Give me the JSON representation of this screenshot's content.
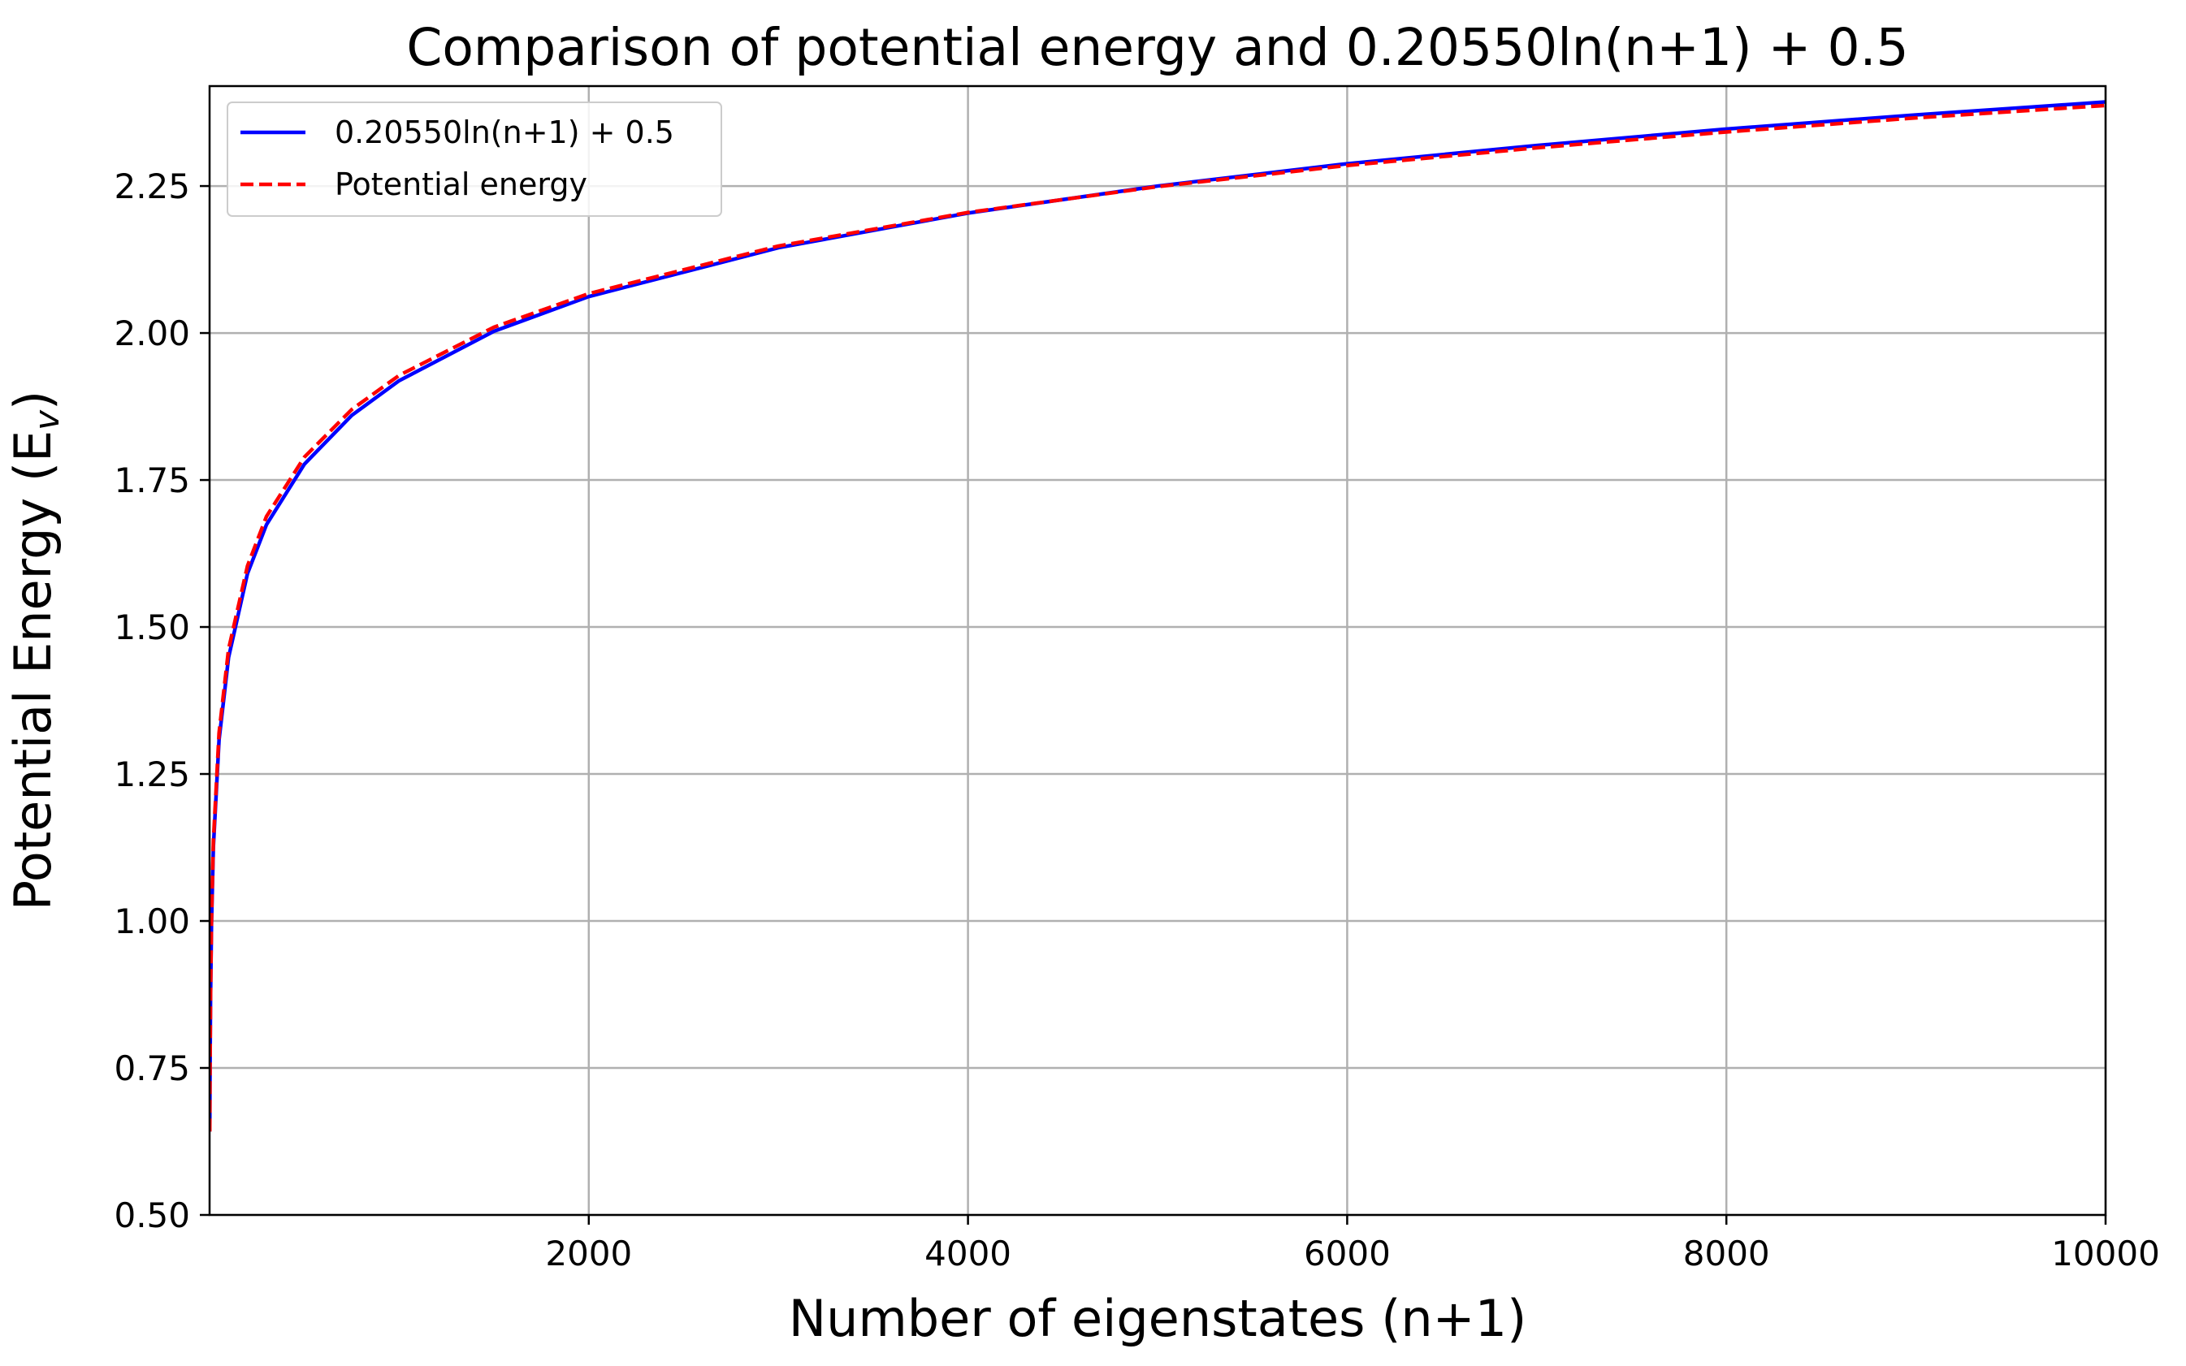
{
  "chart_data": {
    "type": "line",
    "title": "Comparison of potential energy and 0.20550ln(n+1) + 0.5",
    "xlabel": "Number of eigenstates (n+1)",
    "ylabel_main": "Potential Energy (E",
    "ylabel_sub": "v",
    "ylabel_end": ")",
    "xlim": [
      0,
      10000
    ],
    "ylim": [
      0.5,
      2.42
    ],
    "xticks": [
      2000,
      4000,
      6000,
      8000,
      10000
    ],
    "xtick_labels": [
      "2000",
      "4000",
      "6000",
      "8000",
      "10000"
    ],
    "yticks": [
      0.5,
      0.75,
      1.0,
      1.25,
      1.5,
      1.75,
      2.0,
      2.25
    ],
    "ytick_labels": [
      "0.50",
      "0.75",
      "1.00",
      "1.25",
      "1.50",
      "1.75",
      "2.00",
      "2.25"
    ],
    "grid": true,
    "legend_position": "top-left",
    "series": [
      {
        "name": "0.20550ln(n+1) + 0.5",
        "color": "#0000ff",
        "style": "solid",
        "x": [
          1,
          2,
          5,
          10,
          20,
          50,
          100,
          200,
          300,
          500,
          750,
          1000,
          1500,
          2000,
          3000,
          4000,
          5000,
          6000,
          7000,
          8000,
          9000,
          10000
        ],
        "y": [
          0.642,
          0.726,
          0.868,
          0.993,
          1.126,
          1.308,
          1.448,
          1.591,
          1.674,
          1.777,
          1.86,
          1.919,
          2.003,
          2.062,
          2.145,
          2.204,
          2.25,
          2.288,
          2.319,
          2.347,
          2.371,
          2.393
        ]
      },
      {
        "name": "Potential energy",
        "color": "#ff0000",
        "style": "dashed",
        "x": [
          1,
          2,
          5,
          10,
          20,
          50,
          100,
          200,
          300,
          500,
          750,
          1000,
          1500,
          2000,
          3000,
          4000,
          5000,
          6000,
          7000,
          8000,
          9000,
          10000
        ],
        "y": [
          0.642,
          0.728,
          0.872,
          1.0,
          1.136,
          1.32,
          1.462,
          1.604,
          1.688,
          1.789,
          1.87,
          1.928,
          2.01,
          2.067,
          2.148,
          2.205,
          2.249,
          2.285,
          2.315,
          2.342,
          2.366,
          2.387
        ]
      }
    ]
  }
}
